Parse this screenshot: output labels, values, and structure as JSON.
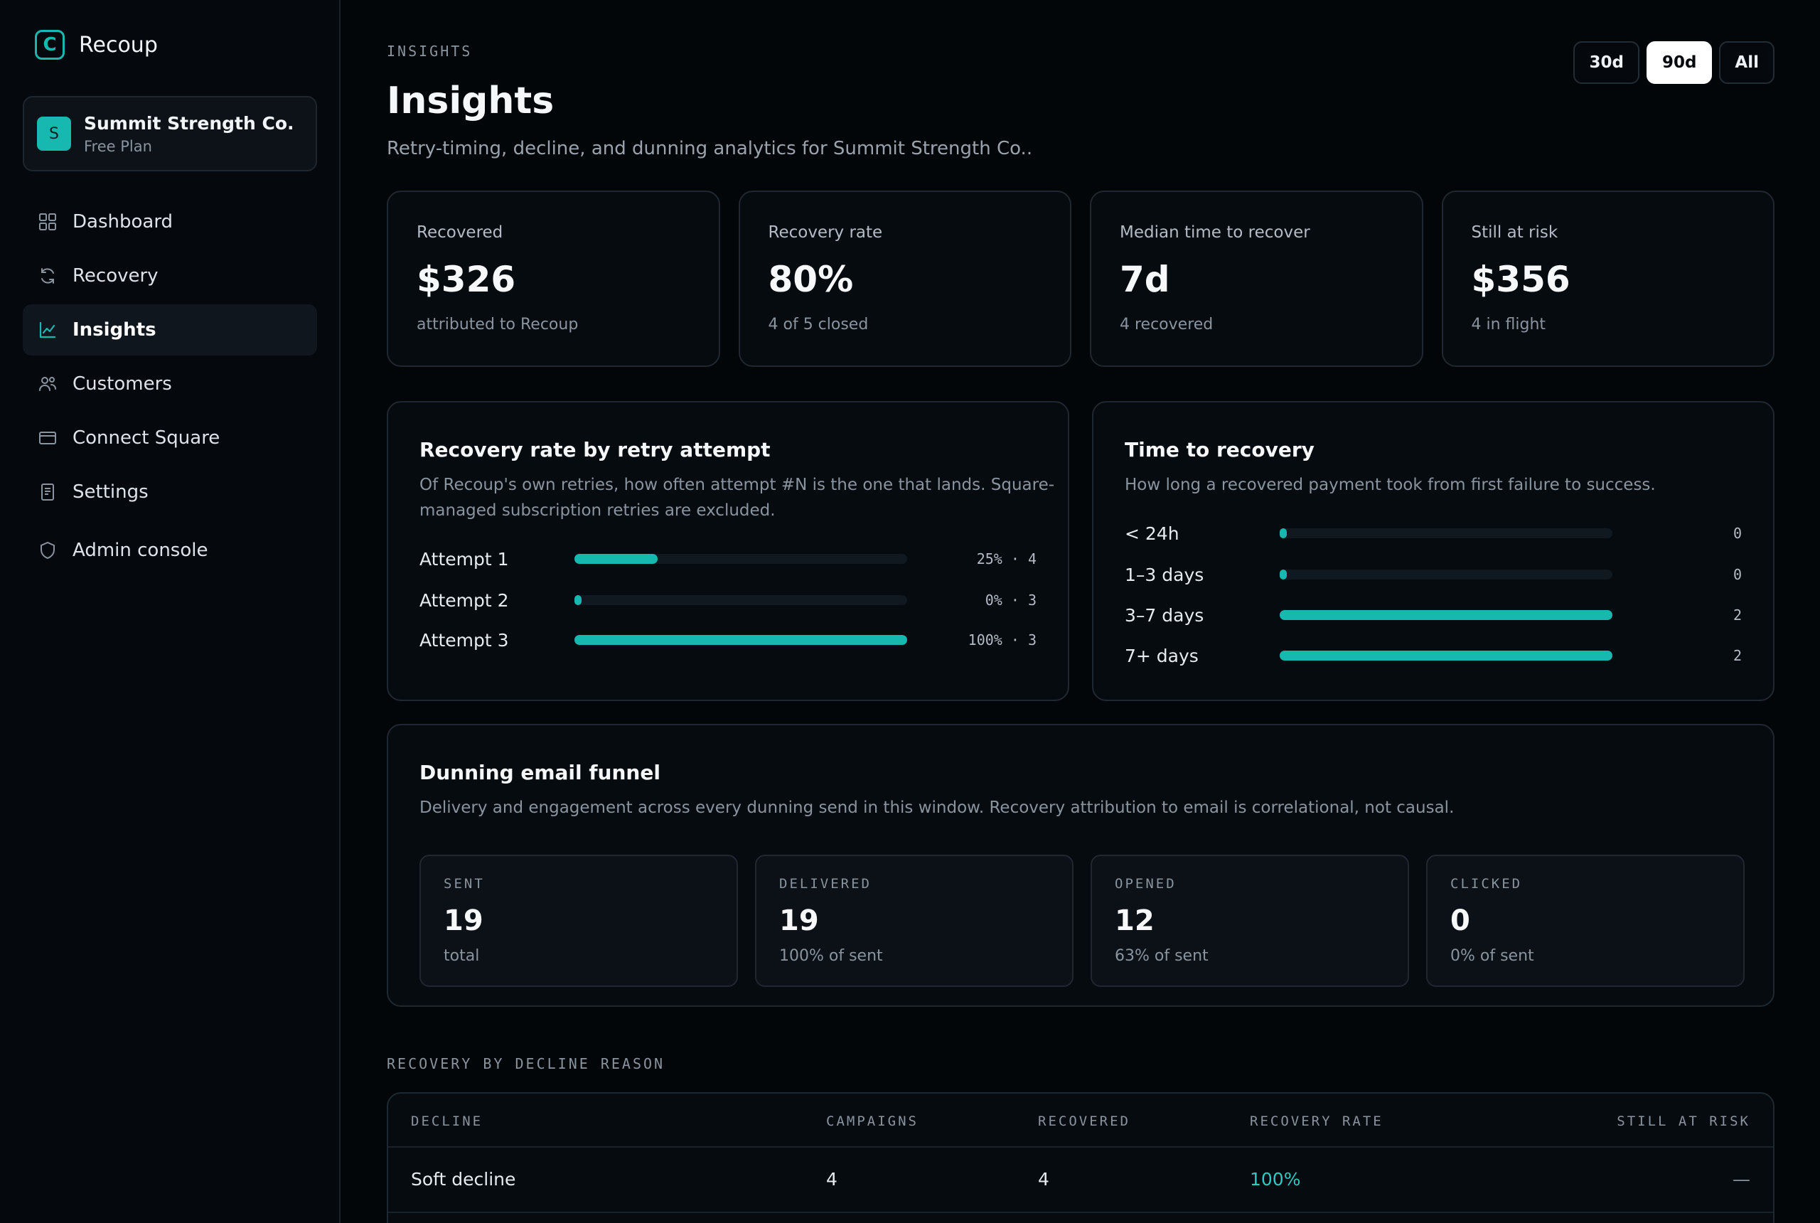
{
  "app": {
    "name": "Recoup",
    "logo_letter": "C"
  },
  "org": {
    "avatar": "S",
    "name": "Summit Strength Co.",
    "plan": "Free Plan"
  },
  "nav": [
    {
      "label": "Dashboard",
      "icon": "grid-icon",
      "active": false
    },
    {
      "label": "Recovery",
      "icon": "refresh-icon",
      "active": false
    },
    {
      "label": "Insights",
      "icon": "chart-line-icon",
      "active": true
    },
    {
      "label": "Customers",
      "icon": "users-icon",
      "active": false
    },
    {
      "label": "Connect Square",
      "icon": "credit-card-icon",
      "active": false
    },
    {
      "label": "Settings",
      "icon": "document-icon",
      "active": false
    },
    {
      "label": "Admin console",
      "icon": "shield-icon",
      "active": false
    }
  ],
  "header": {
    "eyebrow": "INSIGHTS",
    "title": "Insights",
    "subtitle": "Retry-timing, decline, and dunning analytics for Summit Strength Co..",
    "ranges": [
      "30d",
      "90d",
      "All"
    ],
    "selected_range": "90d"
  },
  "kpis": [
    {
      "label": "Recovered",
      "value": "$326",
      "sub": "attributed to Recoup"
    },
    {
      "label": "Recovery rate",
      "value": "80%",
      "sub": "4 of 5 closed"
    },
    {
      "label": "Median time to recover",
      "value": "7d",
      "sub": "4 recovered"
    },
    {
      "label": "Still at risk",
      "value": "$356",
      "sub": "4 in flight"
    }
  ],
  "retry_panel": {
    "title": "Recovery rate by retry attempt",
    "desc_line1": "Of Recoup's own retries, how often attempt #N is the one that lands. Square-",
    "desc_line2": "managed subscription retries are excluded.",
    "rows": [
      {
        "label": "Attempt 1",
        "pct": 25,
        "value": "25% · 4"
      },
      {
        "label": "Attempt 2",
        "pct": 0,
        "value": "0% · 3"
      },
      {
        "label": "Attempt 3",
        "pct": 100,
        "value": "100% · 3"
      }
    ]
  },
  "time_panel": {
    "title": "Time to recovery",
    "desc": "How long a recovered payment took from first failure to success.",
    "max": 2,
    "rows": [
      {
        "label": "< 24h",
        "count": 0,
        "value": "0"
      },
      {
        "label": "1–3 days",
        "count": 0,
        "value": "0"
      },
      {
        "label": "3–7 days",
        "count": 2,
        "value": "2"
      },
      {
        "label": "7+ days",
        "count": 2,
        "value": "2"
      }
    ]
  },
  "funnel": {
    "title": "Dunning email funnel",
    "desc": "Delivery and engagement across every dunning send in this window. Recovery attribution to email is correlational, not causal.",
    "cards": [
      {
        "label": "SENT",
        "value": "19",
        "sub": "total"
      },
      {
        "label": "DELIVERED",
        "value": "19",
        "sub": "100% of sent"
      },
      {
        "label": "OPENED",
        "value": "12",
        "sub": "63% of sent"
      },
      {
        "label": "CLICKED",
        "value": "0",
        "sub": "0% of sent"
      }
    ]
  },
  "decline_table": {
    "section_label": "RECOVERY BY DECLINE REASON",
    "headers": {
      "decline": "DECLINE",
      "campaigns": "CAMPAIGNS",
      "recovered": "RECOVERED",
      "rate": "RECOVERY RATE",
      "risk": "STILL AT RISK"
    },
    "rows": [
      {
        "decline": "Soft decline",
        "campaigns": "4",
        "recovered": "4",
        "rate": "100%",
        "risk": "—"
      }
    ]
  },
  "colors": {
    "accent": "#16b8b0",
    "background": "#030609",
    "panel": "#060b10",
    "border": "#1f2830"
  }
}
